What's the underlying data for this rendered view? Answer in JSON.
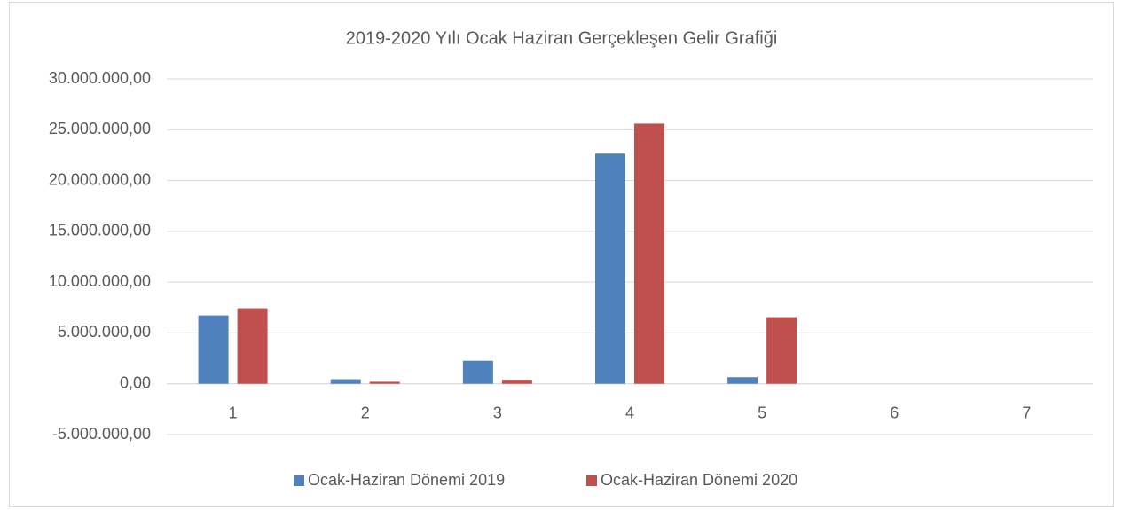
{
  "chart_data": {
    "type": "bar",
    "title": "2019-2020 Yılı Ocak Haziran Gerçekleşen Gelir Grafiği",
    "categories": [
      "1",
      "2",
      "3",
      "4",
      "5",
      "6",
      "7"
    ],
    "series": [
      {
        "name": "Ocak-Haziran Dönemi 2019",
        "color": "#4f81bd",
        "values": [
          6730000,
          450000,
          2270000,
          22650000,
          650000,
          0,
          0
        ]
      },
      {
        "name": "Ocak-Haziran Dönemi 2020",
        "color": "#c0504d",
        "values": [
          7430000,
          200000,
          400000,
          25600000,
          6560000,
          0,
          0
        ]
      }
    ],
    "ylim": [
      -5000000,
      30000000
    ],
    "yticks": [
      {
        "value": -5000000,
        "label": "-5.000.000,00"
      },
      {
        "value": 0,
        "label": "0,00"
      },
      {
        "value": 5000000,
        "label": "5.000.000,00"
      },
      {
        "value": 10000000,
        "label": "10.000.000,00"
      },
      {
        "value": 15000000,
        "label": "15.000.000,00"
      },
      {
        "value": 20000000,
        "label": "20.000.000,00"
      },
      {
        "value": 25000000,
        "label": "25.000.000,00"
      },
      {
        "value": 30000000,
        "label": "30.000.000,00"
      }
    ],
    "grid": true,
    "legend": "bottom"
  }
}
